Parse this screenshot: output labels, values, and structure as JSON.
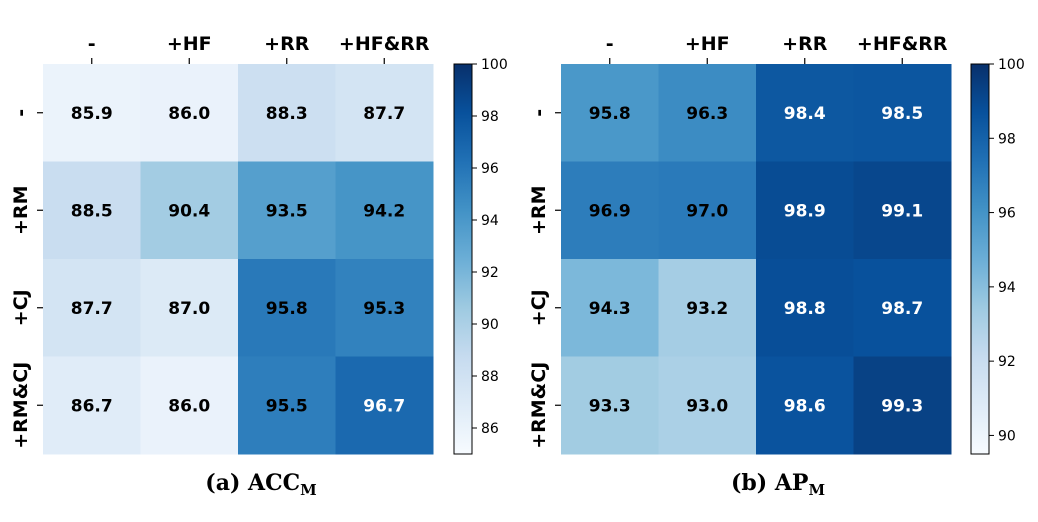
{
  "chart_data": [
    {
      "type": "heatmap",
      "columns": [
        "-",
        "+HF",
        "+RR",
        "+HF&RR"
      ],
      "rows": [
        "-",
        "+RM",
        "+CJ",
        "+RM&CJ"
      ],
      "values": [
        [
          85.9,
          86.0,
          88.3,
          87.7
        ],
        [
          88.5,
          90.4,
          93.5,
          94.2
        ],
        [
          87.7,
          87.0,
          95.8,
          95.3
        ],
        [
          86.7,
          86.0,
          95.5,
          96.7
        ]
      ],
      "colorbar": {
        "min": 85,
        "max": 100,
        "ticks": [
          86,
          88,
          90,
          92,
          94,
          96,
          98,
          100
        ]
      },
      "colormap": "Blues",
      "caption_main": "(a) ACC",
      "caption_sub": "M"
    },
    {
      "type": "heatmap",
      "columns": [
        "-",
        "+HF",
        "+RR",
        "+HF&RR"
      ],
      "rows": [
        "-",
        "+RM",
        "+CJ",
        "+RM&CJ"
      ],
      "values": [
        [
          95.8,
          96.3,
          98.4,
          98.5
        ],
        [
          96.9,
          97.0,
          98.9,
          99.1
        ],
        [
          94.3,
          93.2,
          98.8,
          98.7
        ],
        [
          93.3,
          93.0,
          98.6,
          99.3
        ]
      ],
      "colorbar": {
        "min": 89.5,
        "max": 100,
        "ticks": [
          90,
          92,
          94,
          96,
          98,
          100
        ]
      },
      "colormap": "Blues",
      "caption_main": "(b) AP",
      "caption_sub": "M"
    }
  ],
  "colors": {
    "blues_low": "#f7fbff",
    "blues_high": "#08306b",
    "text_dark": "#000000",
    "text_light": "#ffffff"
  }
}
